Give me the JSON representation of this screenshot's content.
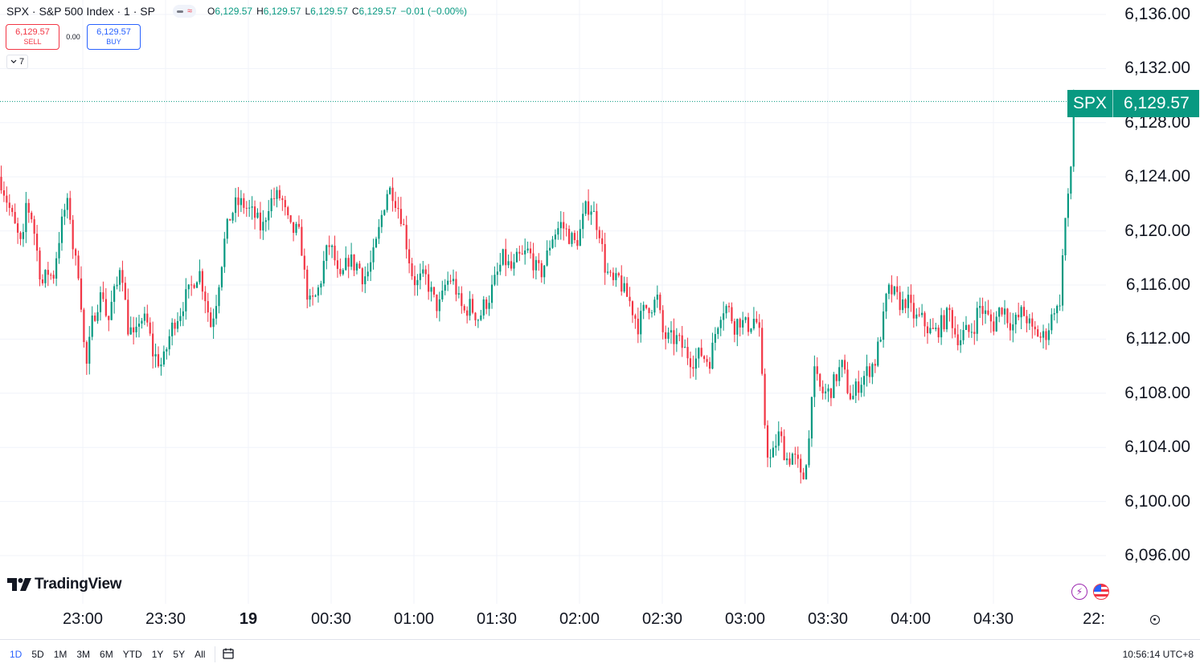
{
  "header": {
    "title": "SPX · S&P 500 Index · 1 · SP",
    "ohlc": [
      {
        "key": "O",
        "value": "6,129.57"
      },
      {
        "key": "H",
        "value": "6,129.57"
      },
      {
        "key": "L",
        "value": "6,129.57"
      },
      {
        "key": "C",
        "value": "6,129.57"
      }
    ],
    "change": "−0.01 (−0.00%)",
    "sell_price": "6,129.57",
    "sell_label": "SELL",
    "spread": "0.00",
    "buy_price": "6,129.57",
    "buy_label": "BUY",
    "indicators_count": "7"
  },
  "branding": {
    "logo_text": "TradingView"
  },
  "colors": {
    "up": "#089981",
    "down": "#f23645",
    "accent": "#2962ff",
    "grid": "#f0f3fa"
  },
  "chart_data": {
    "type": "candlestick",
    "symbol": "SPX",
    "last_price": "6,129.57",
    "ylim": [
      6093.5,
      6137.5
    ],
    "price_ticks": [
      "6,136.00",
      "6,132.00",
      "6,128.00",
      "6,124.00",
      "6,120.00",
      "6,116.00",
      "6,112.00",
      "6,108.00",
      "6,104.00",
      "6,100.00",
      "6,096.00"
    ],
    "price_tick_values": [
      6136,
      6132,
      6128,
      6124,
      6120,
      6116,
      6112,
      6108,
      6104,
      6100,
      6096
    ],
    "time_ticks": [
      "23:00",
      "23:30",
      "19",
      "00:30",
      "01:00",
      "01:30",
      "02:00",
      "02:30",
      "03:00",
      "03:30",
      "04:00",
      "04:30",
      "22:"
    ],
    "bold_time_tick": "19",
    "path_keypoints": [
      [
        0,
        6124.0
      ],
      [
        10,
        6122.0
      ],
      [
        20,
        6120.0
      ],
      [
        28,
        6118.5
      ],
      [
        32,
        6122.0
      ],
      [
        40,
        6121.0
      ],
      [
        52,
        6116.0
      ],
      [
        60,
        6117.0
      ],
      [
        66,
        6116.5
      ],
      [
        72,
        6119.0
      ],
      [
        80,
        6121.5
      ],
      [
        86,
        6122.0
      ],
      [
        92,
        6118.0
      ],
      [
        98,
        6117.0
      ],
      [
        102,
        6114.0
      ],
      [
        105,
        6111.0
      ],
      [
        108,
        6110.0
      ],
      [
        114,
        6113.0
      ],
      [
        120,
        6114.5
      ],
      [
        128,
        6115.5
      ],
      [
        134,
        6113.0
      ],
      [
        140,
        6115.0
      ],
      [
        146,
        6116.0
      ],
      [
        150,
        6118.0
      ],
      [
        154,
        6116.0
      ],
      [
        158,
        6113.0
      ],
      [
        164,
        6112.5
      ],
      [
        168,
        6111.5
      ],
      [
        172,
        6113.5
      ],
      [
        178,
        6113.5
      ],
      [
        184,
        6113.0
      ],
      [
        190,
        6111.0
      ],
      [
        196,
        6110.5
      ],
      [
        202,
        6110.0
      ],
      [
        206,
        6111.0
      ],
      [
        212,
        6112.5
      ],
      [
        218,
        6113.5
      ],
      [
        224,
        6114.0
      ],
      [
        230,
        6115.0
      ],
      [
        236,
        6115.5
      ],
      [
        242,
        6116.5
      ],
      [
        248,
        6117.0
      ],
      [
        256,
        6115.0
      ],
      [
        262,
        6113.0
      ],
      [
        268,
        6114.5
      ],
      [
        274,
        6117.0
      ],
      [
        280,
        6119.5
      ],
      [
        286,
        6121.0
      ],
      [
        294,
        6122.0
      ],
      [
        302,
        6122.0
      ],
      [
        310,
        6121.5
      ],
      [
        318,
        6121.0
      ],
      [
        326,
        6120.0
      ],
      [
        334,
        6122.0
      ],
      [
        342,
        6122.5
      ],
      [
        350,
        6122.5
      ],
      [
        356,
        6121.0
      ],
      [
        362,
        6120.0
      ],
      [
        368,
        6120.0
      ],
      [
        374,
        6119.5
      ],
      [
        380,
        6116.0
      ],
      [
        386,
        6114.5
      ],
      [
        392,
        6115.0
      ],
      [
        398,
        6116.0
      ],
      [
        404,
        6118.0
      ],
      [
        410,
        6119.0
      ],
      [
        416,
        6118.0
      ],
      [
        422,
        6116.0
      ],
      [
        428,
        6117.0
      ],
      [
        434,
        6118.0
      ],
      [
        440,
        6117.5
      ],
      [
        446,
        6117.5
      ],
      [
        452,
        6116.5
      ],
      [
        458,
        6117.0
      ],
      [
        464,
        6118.0
      ],
      [
        470,
        6119.5
      ],
      [
        476,
        6121.5
      ],
      [
        482,
        6123.0
      ],
      [
        488,
        6123.0
      ],
      [
        494,
        6122.0
      ],
      [
        500,
        6121.0
      ],
      [
        506,
        6119.0
      ],
      [
        512,
        6117.0
      ],
      [
        518,
        6116.0
      ],
      [
        524,
        6116.5
      ],
      [
        530,
        6116.5
      ],
      [
        536,
        6115.5
      ],
      [
        542,
        6114.5
      ],
      [
        548,
        6114.5
      ],
      [
        554,
        6116.0
      ],
      [
        560,
        6116.5
      ],
      [
        566,
        6116.0
      ],
      [
        572,
        6114.5
      ],
      [
        578,
        6114.0
      ],
      [
        584,
        6114.5
      ],
      [
        590,
        6114.0
      ],
      [
        596,
        6113.5
      ],
      [
        602,
        6114.5
      ],
      [
        608,
        6115.0
      ],
      [
        614,
        6116.0
      ],
      [
        620,
        6117.0
      ],
      [
        626,
        6118.0
      ],
      [
        632,
        6117.5
      ],
      [
        638,
        6117.0
      ],
      [
        644,
        6118.0
      ],
      [
        650,
        6118.0
      ],
      [
        656,
        6118.5
      ],
      [
        662,
        6118.0
      ],
      [
        668,
        6117.0
      ],
      [
        674,
        6117.0
      ],
      [
        680,
        6118.0
      ],
      [
        686,
        6119.5
      ],
      [
        692,
        6120.0
      ],
      [
        698,
        6120.5
      ],
      [
        704,
        6120.0
      ],
      [
        710,
        6119.5
      ],
      [
        716,
        6119.0
      ],
      [
        722,
        6120.0
      ],
      [
        728,
        6121.5
      ],
      [
        734,
        6122.0
      ],
      [
        740,
        6121.0
      ],
      [
        746,
        6120.0
      ],
      [
        752,
        6117.5
      ],
      [
        758,
        6116.5
      ],
      [
        764,
        6116.0
      ],
      [
        770,
        6116.5
      ],
      [
        776,
        6115.5
      ],
      [
        782,
        6115.0
      ],
      [
        788,
        6114.0
      ],
      [
        794,
        6113.0
      ],
      [
        800,
        6114.0
      ],
      [
        806,
        6114.5
      ],
      [
        812,
        6114.5
      ],
      [
        818,
        6115.0
      ],
      [
        824,
        6112.5
      ],
      [
        830,
        6112.0
      ],
      [
        836,
        6112.0
      ],
      [
        842,
        6112.0
      ],
      [
        848,
        6111.5
      ],
      [
        854,
        6111.0
      ],
      [
        860,
        6110.5
      ],
      [
        866,
        6110.5
      ],
      [
        872,
        6111.0
      ],
      [
        878,
        6110.5
      ],
      [
        884,
        6110.5
      ],
      [
        890,
        6112.5
      ],
      [
        896,
        6114.0
      ],
      [
        902,
        6114.5
      ],
      [
        908,
        6114.0
      ],
      [
        914,
        6113.0
      ],
      [
        920,
        6113.5
      ],
      [
        926,
        6113.0
      ],
      [
        932,
        6113.0
      ],
      [
        938,
        6113.5
      ],
      [
        944,
        6113.0
      ],
      [
        950,
        6107.0
      ],
      [
        954,
        6104.0
      ],
      [
        958,
        6103.0
      ],
      [
        962,
        6103.5
      ],
      [
        966,
        6104.5
      ],
      [
        970,
        6105.0
      ],
      [
        974,
        6104.0
      ],
      [
        980,
        6103.0
      ],
      [
        986,
        6103.5
      ],
      [
        990,
        6103.0
      ],
      [
        994,
        6102.5
      ],
      [
        998,
        6101.0
      ],
      [
        1002,
        6103.0
      ],
      [
        1006,
        6104.0
      ],
      [
        1010,
        6108.5
      ],
      [
        1014,
        6109.5
      ],
      [
        1018,
        6108.5
      ],
      [
        1024,
        6108.0
      ],
      [
        1030,
        6108.0
      ],
      [
        1036,
        6108.5
      ],
      [
        1042,
        6109.5
      ],
      [
        1048,
        6110.0
      ],
      [
        1054,
        6108.5
      ],
      [
        1060,
        6107.5
      ],
      [
        1066,
        6108.5
      ],
      [
        1072,
        6109.0
      ],
      [
        1078,
        6109.5
      ],
      [
        1084,
        6110.0
      ],
      [
        1090,
        6110.5
      ],
      [
        1094,
        6112.0
      ],
      [
        1098,
        6113.0
      ],
      [
        1104,
        6115.5
      ],
      [
        1110,
        6115.5
      ],
      [
        1116,
        6115.0
      ],
      [
        1122,
        6114.5
      ],
      [
        1128,
        6115.0
      ],
      [
        1134,
        6114.0
      ],
      [
        1140,
        6113.5
      ],
      [
        1146,
        6113.5
      ],
      [
        1152,
        6113.0
      ],
      [
        1158,
        6112.5
      ],
      [
        1164,
        6112.5
      ],
      [
        1170,
        6113.0
      ],
      [
        1176,
        6113.5
      ],
      [
        1182,
        6114.0
      ],
      [
        1188,
        6112.5
      ],
      [
        1194,
        6112.0
      ],
      [
        1200,
        6112.5
      ],
      [
        1206,
        6112.5
      ],
      [
        1212,
        6113.0
      ],
      [
        1218,
        6114.5
      ],
      [
        1224,
        6114.0
      ],
      [
        1230,
        6113.5
      ],
      [
        1236,
        6113.0
      ],
      [
        1242,
        6114.0
      ],
      [
        1248,
        6114.5
      ],
      [
        1254,
        6113.5
      ],
      [
        1260,
        6113.0
      ],
      [
        1266,
        6113.5
      ],
      [
        1272,
        6114.0
      ],
      [
        1278,
        6113.5
      ],
      [
        1284,
        6112.5
      ],
      [
        1290,
        6112.5
      ],
      [
        1296,
        6112.0
      ],
      [
        1302,
        6112.5
      ],
      [
        1308,
        6113.5
      ],
      [
        1312,
        6114.5
      ],
      [
        1316,
        6114.0
      ],
      [
        1320,
        6115.5
      ],
      [
        1324,
        6120.5
      ],
      [
        1328,
        6121.5
      ],
      [
        1332,
        6124.5
      ],
      [
        1336,
        6127.5
      ],
      [
        1338,
        6129.57
      ]
    ]
  },
  "time_scale": {
    "settings_icon": "gear-icon"
  },
  "bottom_bar": {
    "ranges": [
      "1D",
      "5D",
      "1M",
      "3M",
      "6M",
      "YTD",
      "1Y",
      "5Y",
      "All"
    ],
    "active_range": "1D",
    "clock": "10:56:14 UTC+8"
  }
}
